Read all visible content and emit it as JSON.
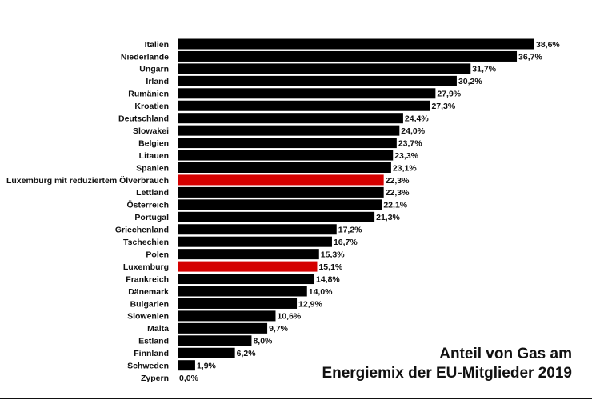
{
  "chart_data": {
    "type": "bar",
    "orientation": "horizontal",
    "title_lines": [
      "Anteil von Gas am",
      "Energiemix der EU-Mitglieder 2019"
    ],
    "xlim": [
      0,
      38.6
    ],
    "categories": [
      "Italien",
      "Niederlande",
      "Ungarn",
      "Irland",
      "Rumänien",
      "Kroatien",
      "Deutschland",
      "Slowakei",
      "Belgien",
      "Litauen",
      "Spanien",
      "Luxemburg mit reduziertem Ölverbrauch",
      "Lettland",
      "Österreich",
      "Portugal",
      "Griechenland",
      "Tschechien",
      "Polen",
      "Luxemburg",
      "Frankreich",
      "Dänemark",
      "Bulgarien",
      "Slowenien",
      "Malta",
      "Estland",
      "Finnland",
      "Schweden",
      "Zypern"
    ],
    "values": [
      38.6,
      36.7,
      31.7,
      30.2,
      27.9,
      27.3,
      24.4,
      24.0,
      23.7,
      23.3,
      23.1,
      22.3,
      22.3,
      22.1,
      21.3,
      17.2,
      16.7,
      15.3,
      15.1,
      14.8,
      14.0,
      12.9,
      10.6,
      9.7,
      8.0,
      6.2,
      1.9,
      0.0
    ],
    "value_labels": [
      "38,6%",
      "36,7%",
      "31,7%",
      "30,2%",
      "27,9%",
      "27,3%",
      "24,4%",
      "24,0%",
      "23,7%",
      "23,3%",
      "23,1%",
      "22,3%",
      "22,3%",
      "22,1%",
      "21,3%",
      "17,2%",
      "16,7%",
      "15,3%",
      "15,1%",
      "14,8%",
      "14,0%",
      "12,9%",
      "10,6%",
      "9,7%",
      "8,0%",
      "6,2%",
      "1,9%",
      "0,0%"
    ],
    "highlighted": [
      "Luxemburg mit reduziertem Ölverbrauch",
      "Luxemburg"
    ],
    "colors": {
      "bar": "#000000",
      "highlight": "#d40000",
      "text": "#111111"
    }
  }
}
